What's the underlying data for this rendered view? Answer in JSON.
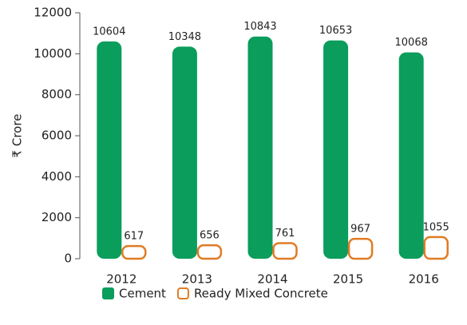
{
  "chart_data": {
    "type": "bar",
    "ylabel": "₹ Crore",
    "categories": [
      "2012",
      "2013",
      "2014",
      "2015",
      "2016"
    ],
    "series": [
      {
        "name": "Cement",
        "color": "#0a9d5c",
        "values": [
          10604,
          10348,
          10843,
          10653,
          10068
        ]
      },
      {
        "name": "Ready Mixed Concrete",
        "color": "#e07b24",
        "values": [
          617,
          656,
          761,
          967,
          1055
        ]
      }
    ],
    "ylim": [
      0,
      12000
    ],
    "yticks": [
      0,
      2000,
      4000,
      6000,
      8000,
      10000,
      12000
    ],
    "grid": false
  }
}
